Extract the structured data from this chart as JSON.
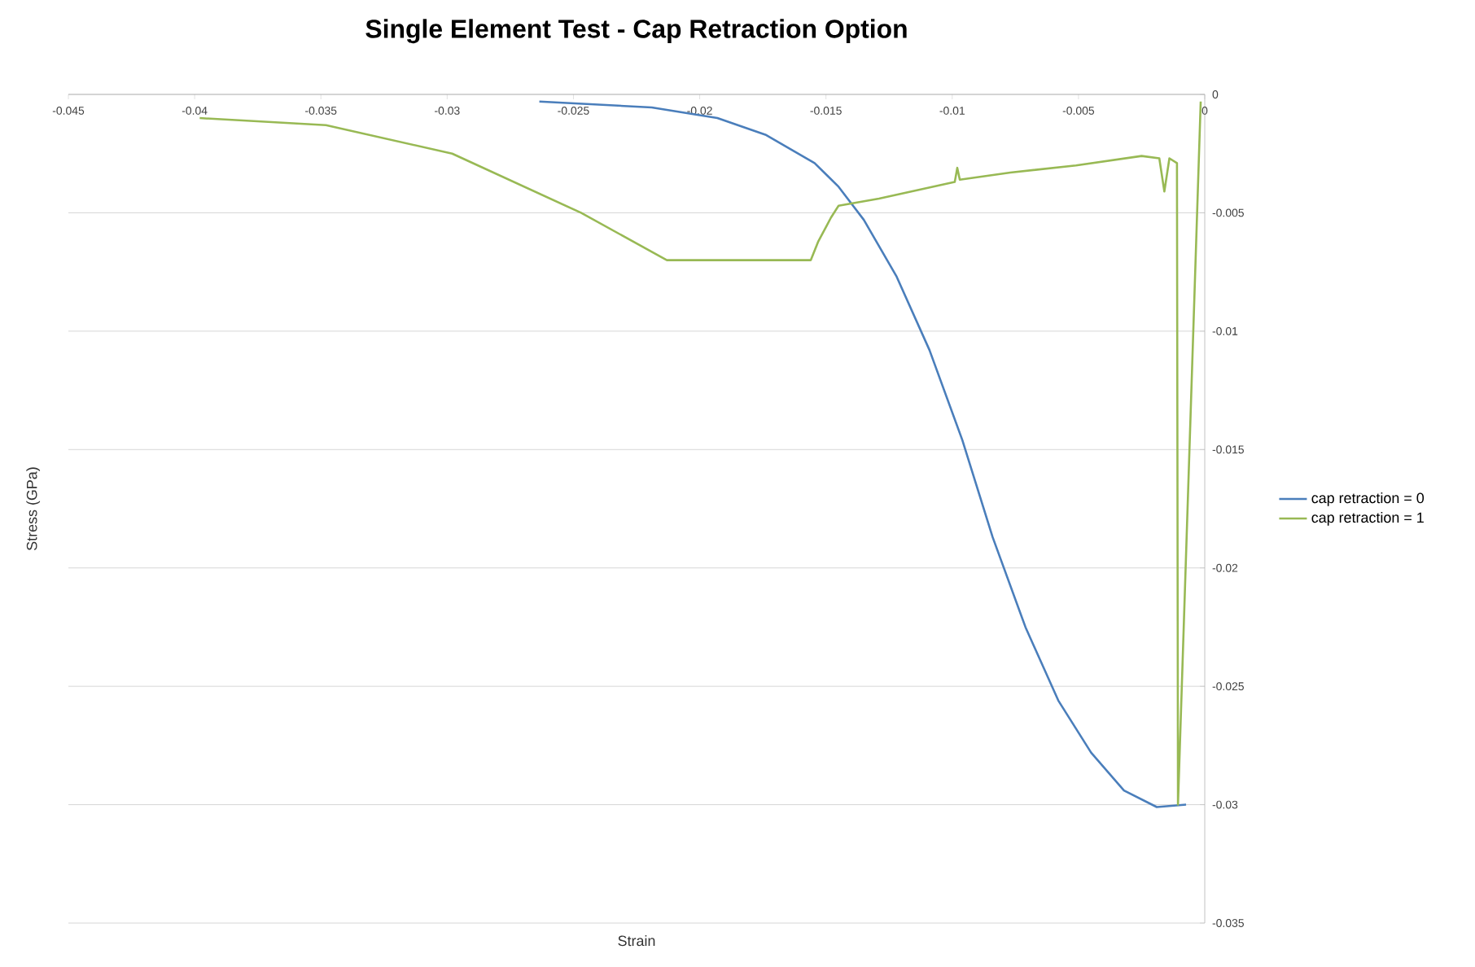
{
  "chart_data": {
    "type": "line",
    "title": "Single Element Test - Cap Retraction Option",
    "xlabel": "Strain",
    "ylabel": "Stress (GPa)",
    "xlim": [
      -0.045,
      0
    ],
    "xticks": [
      -0.045,
      -0.04,
      -0.035,
      -0.03,
      -0.025,
      -0.02,
      -0.015,
      -0.01,
      -0.005,
      0
    ],
    "ylim": [
      -0.035,
      0
    ],
    "yticks": [
      -0.035,
      -0.03,
      -0.025,
      -0.02,
      -0.015,
      -0.01,
      -0.005,
      0
    ],
    "grid": "y",
    "legend": "right",
    "series": [
      {
        "name": "cap retraction = 0",
        "color": "#4a7ebb",
        "x": [
          -0.02635,
          -0.0219,
          -0.0193,
          -0.0174,
          -0.01545,
          -0.0145,
          -0.0135,
          -0.0122,
          -0.0109,
          -0.0096,
          -0.0084,
          -0.0071,
          -0.0058,
          -0.0045,
          -0.0032,
          -0.0019,
          -0.00074
        ],
        "values": [
          -0.0003,
          -0.00055,
          -0.001,
          -0.0017,
          -0.0029,
          -0.0039,
          -0.0053,
          -0.0077,
          -0.0108,
          -0.0146,
          -0.0187,
          -0.0225,
          -0.0256,
          -0.0278,
          -0.0294,
          -0.0301,
          -0.03
        ]
      },
      {
        "name": "cap retraction = 1",
        "color": "#98b954",
        "x": [
          -0.0398,
          -0.0348,
          -0.0298,
          -0.0247,
          -0.0213,
          -0.0156,
          -0.0153,
          -0.0148,
          -0.0145,
          -0.0129,
          -0.0099,
          -0.0098,
          -0.0097,
          -0.0077,
          -0.0051,
          -0.0025,
          -0.0018,
          -0.0016,
          -0.0014,
          -0.0011,
          -0.00106,
          -0.00016
        ],
        "values": [
          -0.001,
          -0.0013,
          -0.0025,
          -0.005,
          -0.007,
          -0.007,
          -0.0062,
          -0.0052,
          -0.0047,
          -0.0044,
          -0.0037,
          -0.0031,
          -0.0036,
          -0.0033,
          -0.003,
          -0.0026,
          -0.0027,
          -0.0041,
          -0.0027,
          -0.0029,
          -0.03,
          -0.0003
        ]
      }
    ]
  }
}
